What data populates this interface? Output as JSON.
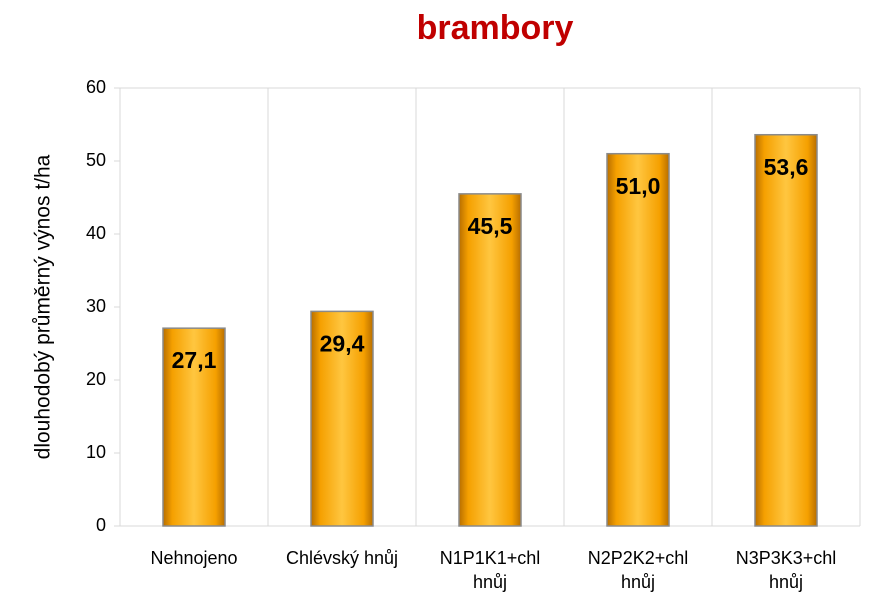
{
  "chart_data": {
    "type": "bar",
    "title": "brambory",
    "y_label": "dlouhodobý průměrný výnos t/ha",
    "categories": [
      "Nehnojeno",
      "Chlévský hnůj",
      "N1P1K1+chl hnůj",
      "N2P2K2+chl hnůj",
      "N3P3K3+chl hnůj"
    ],
    "values": [
      27.1,
      29.4,
      45.5,
      51.0,
      53.6
    ],
    "value_labels": [
      "27,1",
      "29,4",
      "45,5",
      "51,0",
      "53,6"
    ],
    "color": "#f5a000",
    "ylim": [
      0,
      60
    ],
    "yticks": [
      0,
      10,
      20,
      30,
      40,
      50,
      60
    ],
    "grid": false
  }
}
